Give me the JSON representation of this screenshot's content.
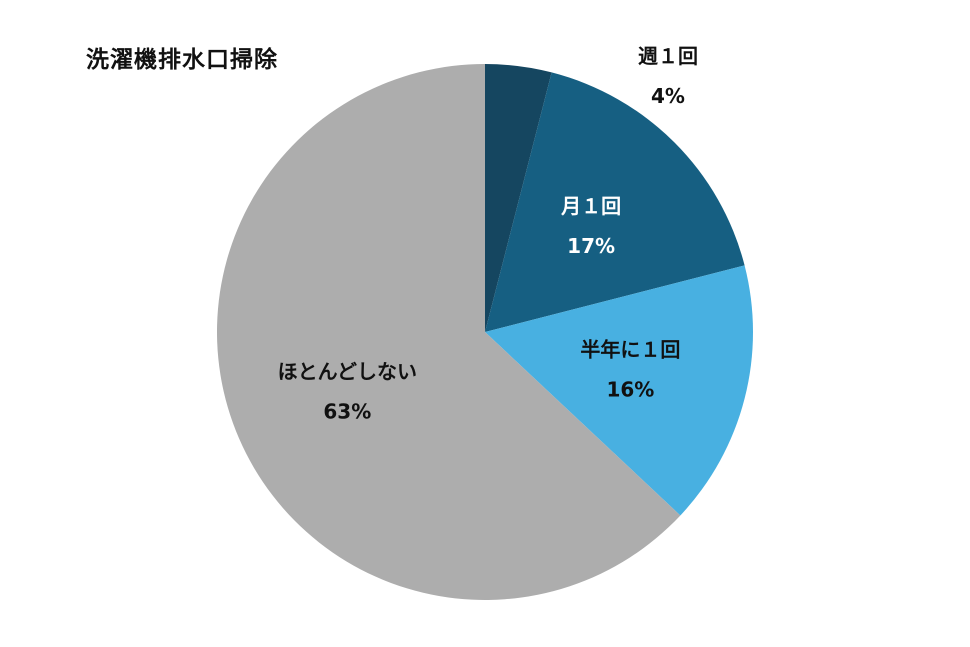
{
  "chart_data": {
    "type": "pie",
    "title": "洗濯機排水口掃除",
    "start_angle_deg": 0,
    "direction": "clockwise",
    "slices": [
      {
        "label": "週１回",
        "value": 4,
        "value_label": "4%",
        "color": "#154660",
        "label_color": "#111111"
      },
      {
        "label": "月１回",
        "value": 17,
        "value_label": "17%",
        "color": "#165f82",
        "label_color": "#ffffff"
      },
      {
        "label": "半年に１回",
        "value": 16,
        "value_label": "16%",
        "color": "#48b0e1",
        "label_color": "#111111"
      },
      {
        "label": "ほとんどしない",
        "value": 63,
        "value_label": "63%",
        "color": "#adadad",
        "label_color": "#111111"
      }
    ]
  }
}
